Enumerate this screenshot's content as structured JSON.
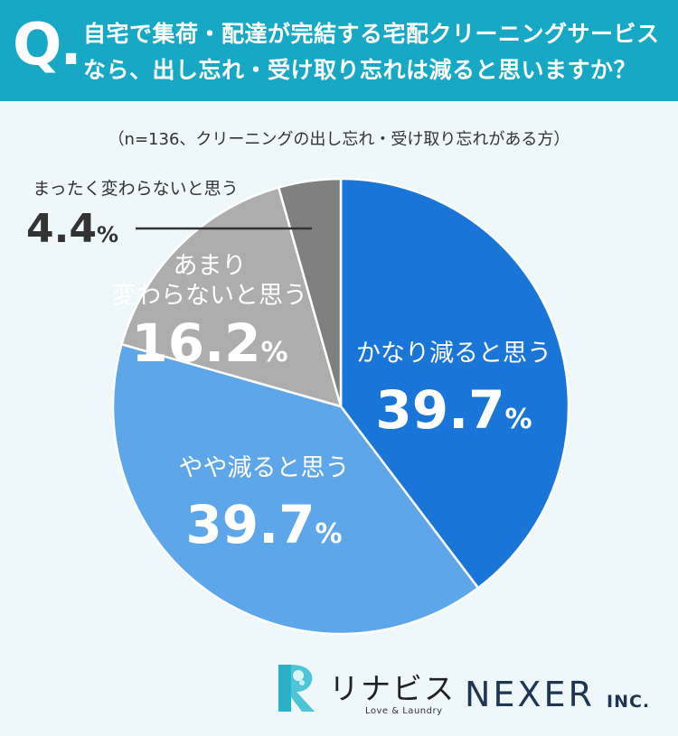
{
  "header": {
    "q_mark": "Q.",
    "line1": "自宅で集荷・配達が完結する宅配クリーニングサービス",
    "line2": "なら、出し忘れ・受け取り忘れは減ると思いますか？"
  },
  "note": "（n=136、クリーニングの出し忘れ・受け取り忘れがある方）",
  "chart_data": {
    "type": "pie",
    "title": "",
    "unit": "%",
    "slices": [
      {
        "label": "かなり減ると思う",
        "value": 39.7,
        "value_text": "39.7",
        "color": "#1976d8"
      },
      {
        "label": "やや減ると思う",
        "value": 39.7,
        "value_text": "39.7",
        "color": "#5ea6ea"
      },
      {
        "label_lines": [
          "あまり",
          "変わらないと思う"
        ],
        "value": 16.2,
        "value_text": "16.2",
        "color": "#adadad"
      },
      {
        "label": "まったく変わらないと思う",
        "value": 4.4,
        "value_text": "4.4",
        "color": "#808080"
      }
    ]
  },
  "logos": {
    "rinabis": "リナビス",
    "rinabis_tagline": "Love & Laundry",
    "nexer": "NEXER",
    "nexer_inc": "INC."
  }
}
